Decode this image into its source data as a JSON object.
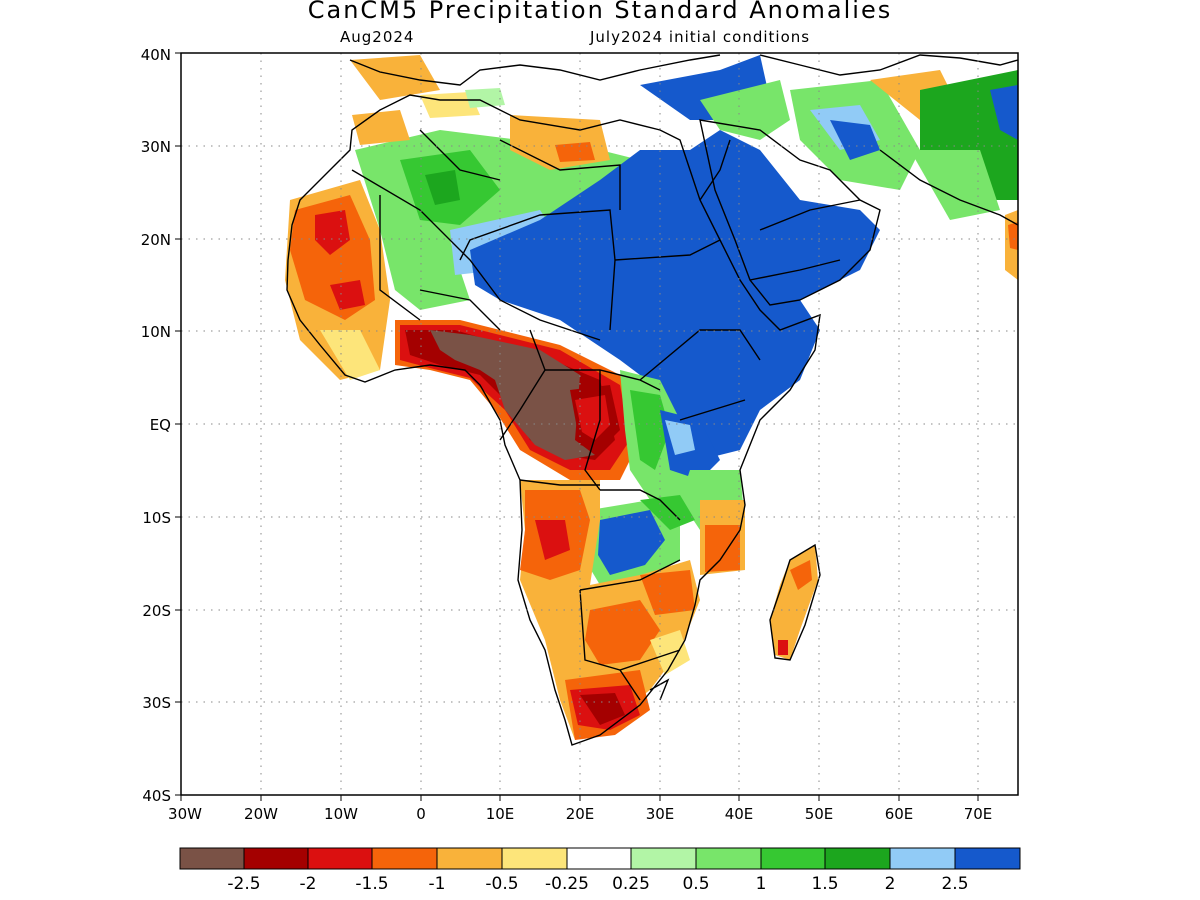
{
  "title": "CanCM5 Precipitation Standard Anomalies",
  "subtitle_left": "Aug2024",
  "subtitle_right": "July2024 initial conditions",
  "axes": {
    "x_ticks": [
      "30W",
      "20W",
      "10W",
      "0",
      "10E",
      "20E",
      "30E",
      "40E",
      "50E",
      "60E",
      "70E"
    ],
    "y_ticks": [
      "40N",
      "30N",
      "20N",
      "10N",
      "EQ",
      "10S",
      "20S",
      "30S",
      "40S"
    ],
    "lon_range": [
      -30,
      75
    ],
    "lat_range": [
      -40,
      40
    ],
    "grid": "dotted"
  },
  "colorbar": {
    "labels": [
      "-2.5",
      "-2",
      "-1.5",
      "-1",
      "-0.5",
      "-0.25",
      "0.25",
      "0.5",
      "1",
      "1.5",
      "2",
      "2.5"
    ],
    "colors": [
      "#7a5246",
      "#a40000",
      "#db1010",
      "#f5640a",
      "#f9b23a",
      "#fde57a",
      "#ffffff",
      "#b2f5a6",
      "#78e56a",
      "#36c832",
      "#1ca61e",
      "#91cbf6",
      "#1559cc"
    ]
  },
  "colors": {
    "brown": "#7a5246",
    "darkred": "#a40000",
    "red": "#db1010",
    "orange": "#f5640a",
    "lightorange": "#f9b23a",
    "yellow": "#fde57a",
    "lightgreen": "#b2f5a6",
    "green": "#78e56a",
    "medgreen": "#36c832",
    "darkgreen": "#1ca61e",
    "lightblue": "#91cbf6",
    "blue": "#1559cc"
  }
}
